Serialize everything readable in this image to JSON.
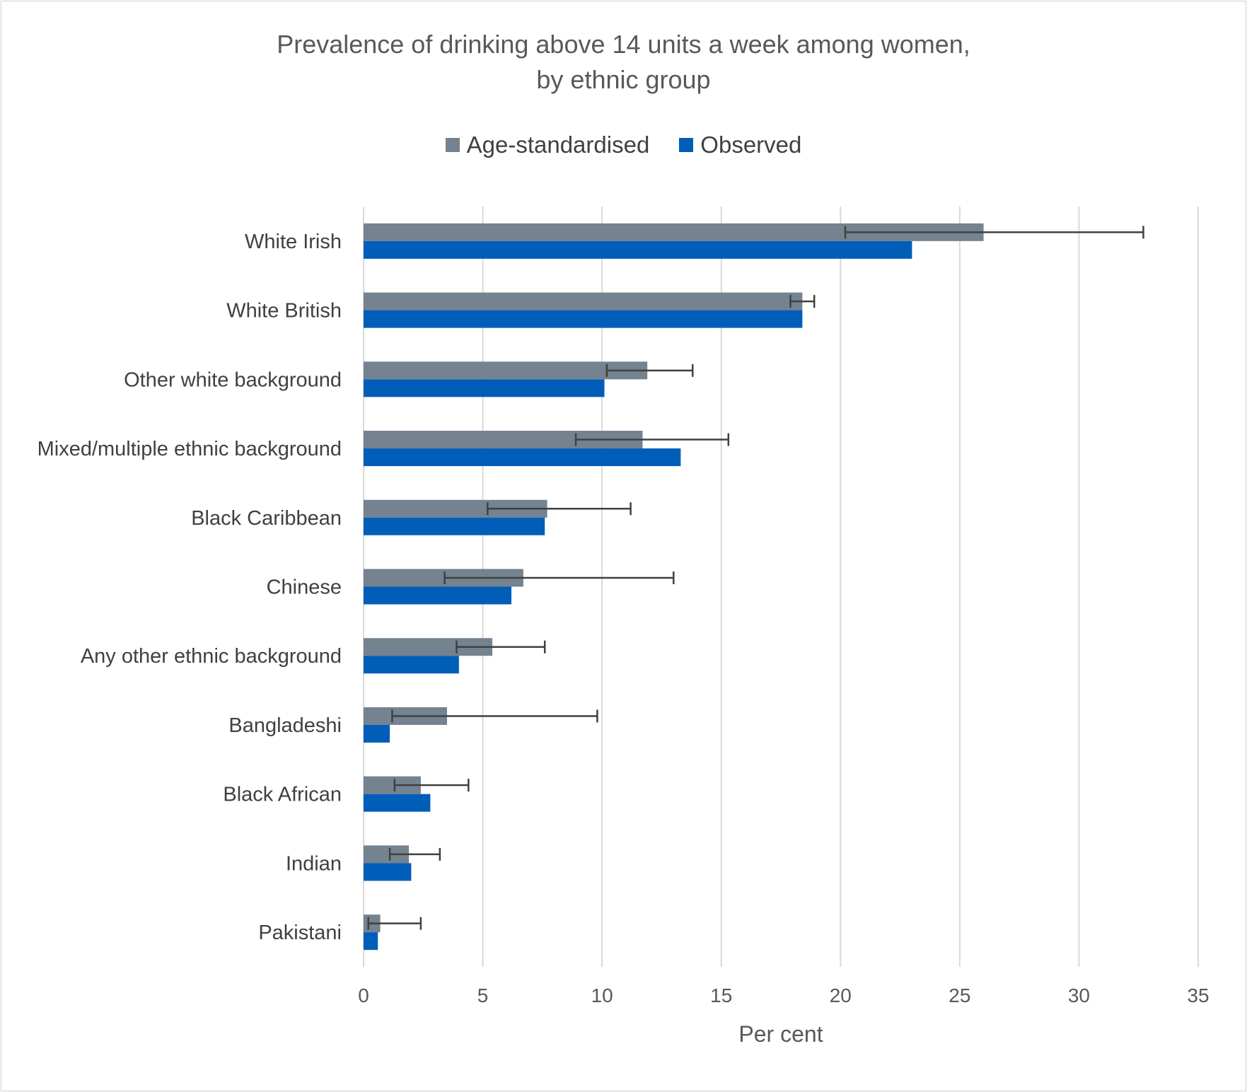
{
  "chart_data": {
    "type": "bar",
    "orientation": "horizontal",
    "title": [
      "Prevalence of drinking above 14 units a week among women,",
      "by ethnic group"
    ],
    "xlabel": "Per cent",
    "ylabel": "",
    "xlim": [
      0,
      35
    ],
    "xticks": [
      0,
      5,
      10,
      15,
      20,
      25,
      30,
      35
    ],
    "grid": true,
    "legend_position": "top",
    "categories": [
      "White Irish",
      "White British",
      "Other white background",
      "Mixed/multiple ethnic background",
      "Black Caribbean",
      "Chinese",
      "Any other ethnic background",
      "Bangladeshi",
      "Black African",
      "Indian",
      "Pakistani"
    ],
    "series": [
      {
        "name": "Age-standardised",
        "color": "#75828f",
        "values": [
          26.0,
          18.4,
          11.9,
          11.7,
          7.7,
          6.7,
          5.4,
          3.5,
          2.4,
          1.9,
          0.7
        ],
        "error_low": [
          20.2,
          17.9,
          10.2,
          8.9,
          5.2,
          3.4,
          3.9,
          1.2,
          1.3,
          1.1,
          0.2
        ],
        "error_high": [
          32.7,
          18.9,
          13.8,
          15.3,
          11.2,
          13.0,
          7.6,
          9.8,
          4.4,
          3.2,
          2.4
        ]
      },
      {
        "name": "Observed",
        "color": "#005eb8",
        "values": [
          23.0,
          18.4,
          10.1,
          13.3,
          7.6,
          6.2,
          4.0,
          1.1,
          2.8,
          2.0,
          0.6
        ]
      }
    ]
  }
}
